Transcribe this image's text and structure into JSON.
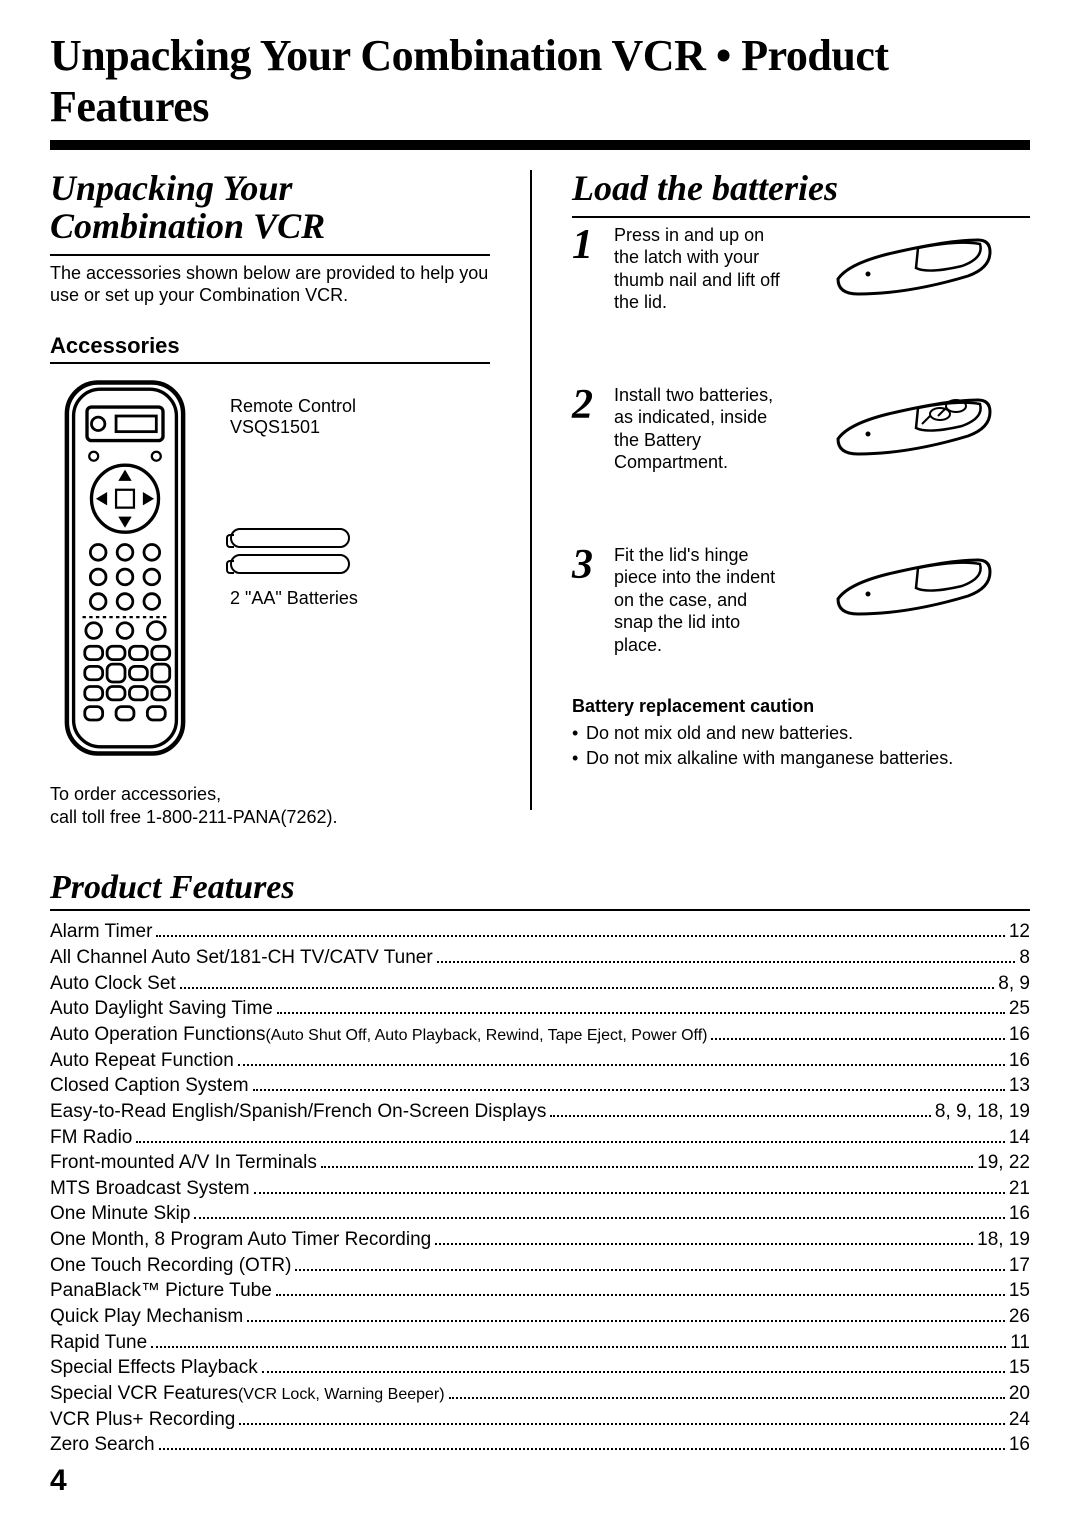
{
  "page_title": "Unpacking Your Combination VCR • Product Features",
  "page_number": "4",
  "left": {
    "heading": "Unpacking Your Combination VCR",
    "intro": "The accessories shown below are provided to help you use or set up your Combination VCR.",
    "subhead": "Accessories",
    "remote_label_line1": "Remote Control",
    "remote_label_line2": "VSQS1501",
    "batteries_label": "2 \"AA\" Batteries",
    "order_line1": "To order accessories,",
    "order_line2": "call toll free 1-800-211-PANA(7262)."
  },
  "right": {
    "heading": "Load the batteries",
    "steps": [
      {
        "num": "1",
        "text": "Press in and up on the latch with your thumb nail and lift off the lid."
      },
      {
        "num": "2",
        "text": "Install two batteries, as indicated, inside the Battery Compartment."
      },
      {
        "num": "3",
        "text": "Fit the lid's hinge piece into the indent on the case, and snap the lid into place."
      }
    ],
    "caution_head": "Battery replacement caution",
    "caution_items": [
      "Do not mix old and new batteries.",
      "Do not mix alkaline with manganese batteries."
    ]
  },
  "features": {
    "heading": "Product Features",
    "rows": [
      {
        "label": "Alarm Timer",
        "note": "",
        "page": "12"
      },
      {
        "label": "All Channel Auto Set/181-CH TV/CATV Tuner",
        "note": "",
        "page": "8"
      },
      {
        "label": "Auto Clock Set",
        "note": "",
        "page": "8, 9"
      },
      {
        "label": "Auto Daylight Saving Time",
        "note": "",
        "page": "25"
      },
      {
        "label": "Auto Operation Functions",
        "note": " (Auto Shut Off, Auto Playback, Rewind, Tape Eject, Power Off)",
        "page": "16"
      },
      {
        "label": "Auto Repeat Function",
        "note": "",
        "page": "16"
      },
      {
        "label": "Closed Caption System",
        "note": "",
        "page": "13"
      },
      {
        "label": "Easy-to-Read English/Spanish/French On-Screen Displays",
        "note": "",
        "page": "8, 9, 18, 19"
      },
      {
        "label": "FM Radio",
        "note": "",
        "page": "14"
      },
      {
        "label": "Front-mounted A/V In Terminals",
        "note": "",
        "page": "19, 22"
      },
      {
        "label": "MTS Broadcast System",
        "note": "",
        "page": "21"
      },
      {
        "label": "One Minute Skip",
        "note": "",
        "page": "16"
      },
      {
        "label": "One Month, 8 Program Auto Timer Recording",
        "note": "",
        "page": "18, 19"
      },
      {
        "label": "One Touch Recording (OTR)",
        "note": "",
        "page": "17"
      },
      {
        "label": "PanaBlack™ Picture Tube",
        "note": "",
        "page": "15"
      },
      {
        "label": "Quick Play Mechanism",
        "note": "",
        "page": "26"
      },
      {
        "label": "Rapid Tune",
        "note": "",
        "page": "11"
      },
      {
        "label": "Special Effects Playback",
        "note": "",
        "page": "15"
      },
      {
        "label": "Special VCR Features",
        "note": " (VCR Lock, Warning Beeper)",
        "page": "20"
      },
      {
        "label": "VCR Plus+ Recording",
        "note": "",
        "page": "24"
      },
      {
        "label": "Zero Search",
        "note": "",
        "page": "16"
      }
    ]
  }
}
